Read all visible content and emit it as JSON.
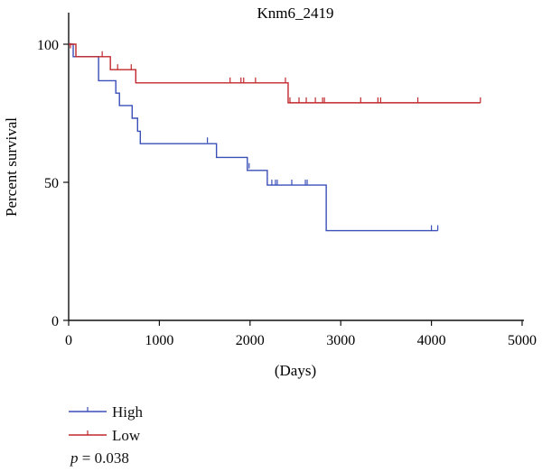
{
  "chart_data": {
    "type": "line",
    "title": "Knm6_2419",
    "xlabel": "(Days)",
    "ylabel": "Percent survival",
    "xlim": [
      0,
      5000
    ],
    "ylim": [
      0,
      100
    ],
    "xticks": [
      0,
      1000,
      2000,
      3000,
      4000,
      5000
    ],
    "yticks": [
      0,
      50,
      100
    ],
    "grid": false,
    "legend_position": "bottom-left",
    "series": [
      {
        "name": "High",
        "color": "#3a4fb8",
        "steps": [
          [
            0,
            100
          ],
          [
            50,
            95.5
          ],
          [
            330,
            86.8
          ],
          [
            520,
            82.3
          ],
          [
            560,
            77.8
          ],
          [
            700,
            73.2
          ],
          [
            760,
            68.5
          ],
          [
            790,
            64
          ],
          [
            1630,
            59
          ],
          [
            1970,
            54.3
          ],
          [
            2190,
            49
          ],
          [
            2840,
            32.5
          ],
          [
            4070,
            32.5
          ]
        ],
        "censored": [
          [
            1530,
            64.3
          ],
          [
            1990,
            55
          ],
          [
            2240,
            49
          ],
          [
            2280,
            49
          ],
          [
            2300,
            49
          ],
          [
            2460,
            49
          ],
          [
            2610,
            49
          ],
          [
            2630,
            49
          ],
          [
            4000,
            32.5
          ],
          [
            4070,
            32.5
          ]
        ]
      },
      {
        "name": "Low",
        "color": "#c0282d",
        "steps": [
          [
            0,
            100
          ],
          [
            80,
            95.5
          ],
          [
            460,
            90.8
          ],
          [
            740,
            86
          ],
          [
            2420,
            78.8
          ],
          [
            4540,
            78.8
          ]
        ],
        "censored": [
          [
            20,
            98.5
          ],
          [
            370,
            95.5
          ],
          [
            540,
            90.8
          ],
          [
            690,
            90.8
          ],
          [
            1780,
            86
          ],
          [
            1900,
            86
          ],
          [
            1930,
            86
          ],
          [
            2060,
            86
          ],
          [
            2390,
            86
          ],
          [
            2440,
            78.8
          ],
          [
            2540,
            78.8
          ],
          [
            2620,
            78.8
          ],
          [
            2720,
            78.8
          ],
          [
            2800,
            78.8
          ],
          [
            2820,
            78.8
          ],
          [
            3220,
            78.8
          ],
          [
            3410,
            78.8
          ],
          [
            3440,
            78.8
          ],
          [
            3850,
            78.8
          ],
          [
            4540,
            78.8
          ]
        ]
      }
    ]
  },
  "legend": {
    "items": [
      {
        "label": "High",
        "color": "#3a4fb8"
      },
      {
        "label": "Low",
        "color": "#c0282d"
      }
    ]
  },
  "annotation": {
    "p_symbol": "p",
    "p_text": " = 0.038"
  }
}
